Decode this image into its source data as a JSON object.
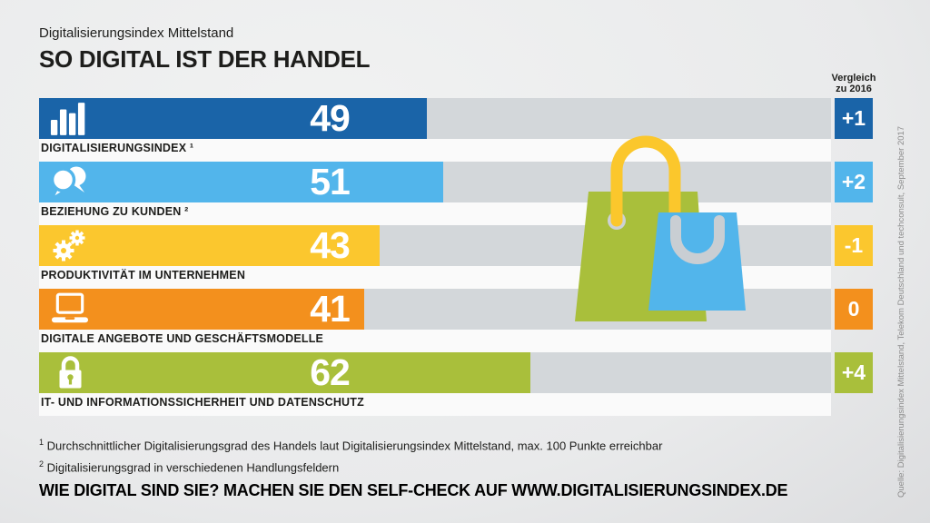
{
  "header": {
    "eyebrow": "Digitalisierungsindex Mittelstand",
    "title": "SO DIGITAL IST DER HANDEL"
  },
  "comparison_header": {
    "line1": "Vergleich",
    "line2": "zu 2016"
  },
  "chart_data": {
    "type": "bar",
    "orientation": "horizontal",
    "title": "SO DIGITAL IST DER HANDEL",
    "max_points": 100,
    "xlim": [
      0,
      100
    ],
    "categories": [
      "DIGITALISIERUNGSINDEX ¹",
      "BEZIEHUNG ZU KUNDEN ²",
      "PRODUKTIVITÄT IM UNTERNEHMEN",
      "DIGITALE ANGEBOTE UND GESCHÄFTSMODELLE",
      "IT- UND INFORMATIONSSICHERHEIT UND DATENSCHUTZ"
    ],
    "values": [
      49,
      51,
      43,
      41,
      62
    ],
    "comparison_to_2016": [
      "+1",
      "+2",
      "-1",
      "0",
      "+4"
    ],
    "colors": [
      "#1a64a8",
      "#52b5eb",
      "#fbc72e",
      "#f3901d",
      "#a9bf3b"
    ],
    "icons": [
      "bar-chart",
      "chat-bubbles",
      "gears",
      "laptop",
      "padlock"
    ],
    "legend": "none",
    "grid": "off"
  },
  "footnotes": [
    {
      "sup": "1",
      "text": "Durchschnittlicher Digitalisierungsgrad des Handels laut Digitalisierungsindex Mittelstand, max. 100 Punkte erreichbar"
    },
    {
      "sup": "2",
      "text": "Digitalisierungsgrad in verschiedenen Handlungsfeldern"
    }
  ],
  "cta": "WIE DIGITAL SIND SIE? MACHEN SIE DEN SELF-CHECK AUF WWW.DIGITALISIERUNGSINDEX.DE",
  "source": "Quelle: Digitalisierungsindex Mittelstand, Telekom Deutschland und techconsult, September 2017",
  "theme": {
    "background": "#e9eaeb",
    "track": "#d3d7da",
    "label_strip": "#fafafa",
    "text": "#1d1d1b",
    "source_text": "#8b8b8b",
    "bag_green": "#a9bf3b",
    "bag_blue": "#52b5eb",
    "bag_handle_yellow": "#fbc72c",
    "bag_handle_gray": "#c9ced3",
    "bag_hole": "#ccd1d5"
  }
}
